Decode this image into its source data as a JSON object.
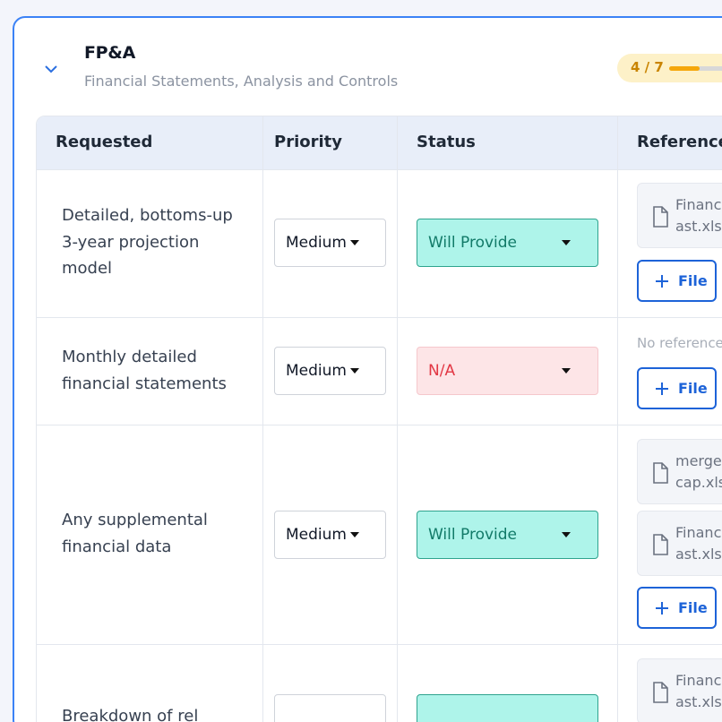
{
  "section": {
    "title": "FP&A",
    "subtitle": "Financial Statements, Analysis and Controls",
    "progress_label": "4 / 7",
    "progress_fraction": 0.43
  },
  "table": {
    "headers": [
      "Requested",
      "Priority",
      "Status",
      "Reference"
    ],
    "rows": [
      {
        "requested": [
          "Detailed, bottoms-up",
          "3-year projection",
          "model"
        ],
        "priority": "Medium",
        "status": "Will Provide",
        "files": [
          [
            "Financi",
            "ast.xlsx"
          ]
        ],
        "add_file_label": "File"
      },
      {
        "requested": [
          "Monthly detailed",
          "financial statements"
        ],
        "priority": "Medium",
        "status": "N/A",
        "no_reference": "No reference",
        "add_file_label": "File"
      },
      {
        "requested": [
          "Any supplemental",
          "financial data"
        ],
        "priority": "Medium",
        "status": "Will Provide",
        "files": [
          [
            "merger",
            "cap.xlsx"
          ],
          [
            "Financi",
            "ast.xlsx"
          ]
        ],
        "add_file_label": "File"
      },
      {
        "requested": [
          "Breakdown of rel"
        ],
        "files": [
          [
            "Financi",
            "ast.xlsx"
          ]
        ]
      }
    ]
  },
  "colors": {
    "card_border": "#3b82f6",
    "will_provide_bg": "#aef4ea",
    "na_bg": "#fde5e7",
    "button_accent": "#1d63d8",
    "progress_accent": "#f5a70b"
  }
}
